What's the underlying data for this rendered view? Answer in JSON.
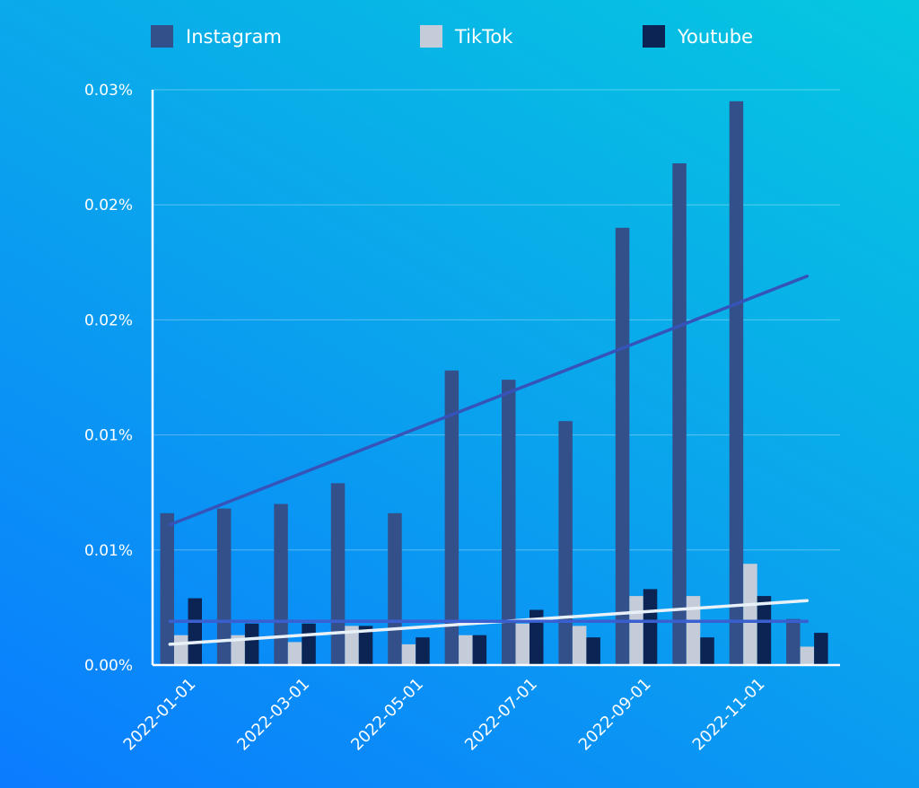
{
  "chart_data": {
    "type": "bar",
    "title": "",
    "xlabel": "",
    "ylabel": "",
    "categories": [
      "2022-01-01",
      "2022-02-01",
      "2022-03-01",
      "2022-04-01",
      "2022-05-01",
      "2022-06-01",
      "2022-07-01",
      "2022-08-01",
      "2022-09-01",
      "2022-10-01",
      "2022-11-01",
      "2022-12-01"
    ],
    "x_tick_labels": [
      "2022-01-01",
      "2022-03-01",
      "2022-05-01",
      "2022-07-01",
      "2022-09-01",
      "2022-11-01"
    ],
    "y_tick_labels": [
      "0.00%",
      "0.01%",
      "0.01%",
      "0.02%",
      "0.02%",
      "0.03%"
    ],
    "ylim": [
      0,
      0.025
    ],
    "grid": true,
    "legend_position": "top",
    "series": [
      {
        "name": "Instagram",
        "color": "#34508a",
        "values": [
          0.0066,
          0.0068,
          0.007,
          0.0079,
          0.0066,
          0.0128,
          0.0124,
          0.0106,
          0.019,
          0.0218,
          0.0245,
          0.002
        ]
      },
      {
        "name": "TikTok",
        "color": "#c3ccd8",
        "values": [
          0.0013,
          0.0013,
          0.001,
          0.0017,
          0.0009,
          0.0013,
          0.0018,
          0.0017,
          0.003,
          0.003,
          0.0044,
          0.0008
        ]
      },
      {
        "name": "Youtube",
        "color": "#0b2453",
        "values": [
          0.0029,
          0.0018,
          0.0018,
          0.0017,
          0.0012,
          0.0013,
          0.0024,
          0.0012,
          0.0033,
          0.0012,
          0.003,
          0.0014
        ]
      }
    ],
    "trendlines": [
      {
        "series": "Instagram",
        "color": "#3553b8",
        "start": 0.0061,
        "end": 0.0169
      },
      {
        "series": "TikTok",
        "color": "#e8f0f8",
        "start": 0.0009,
        "end": 0.0028
      },
      {
        "series": "Youtube",
        "color": "#3a5fd0",
        "start": 0.0019,
        "end": 0.0019
      }
    ]
  }
}
